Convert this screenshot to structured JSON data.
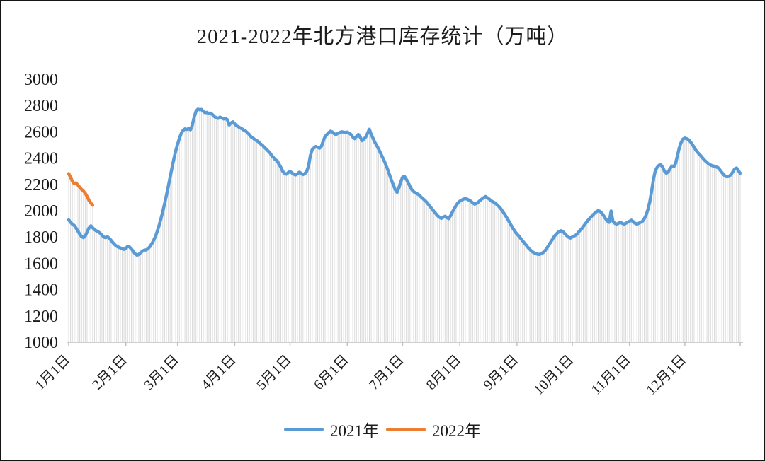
{
  "chart": {
    "title": "2021-2022年北方港口库存统计（万吨）",
    "legend": [
      {
        "label": "2021年",
        "color": "#5B9BD5"
      },
      {
        "label": "2022年",
        "color": "#ED7D31"
      }
    ]
  },
  "chart_data": {
    "type": "line",
    "title": "2021-2022年北方港口库存统计（万吨）",
    "unit": "万吨",
    "grid": false,
    "drop_lines": true,
    "legend_position": "bottom",
    "axis_color": "#BFBFBF",
    "dropline_color": "#DBDBDB",
    "text_color": "#1c1c1c",
    "ylim": [
      1000,
      3000
    ],
    "y_ticks": [
      1000,
      1200,
      1400,
      1600,
      1800,
      2000,
      2200,
      2400,
      2600,
      2800,
      3000
    ],
    "x_tick_labels": [
      "1月1日",
      "2月1日",
      "3月1日",
      "4月1日",
      "5月1日",
      "6月1日",
      "7月1日",
      "8月1日",
      "9月1日",
      "10月1日",
      "11月1日",
      "12月1日"
    ],
    "x_tick_days": [
      0,
      31,
      59,
      90,
      120,
      151,
      181,
      212,
      243,
      273,
      304,
      334
    ],
    "x_total_days": 365,
    "series": [
      {
        "name": "2021年",
        "color": "#5B9BD5",
        "start_day": 0,
        "values": [
          1930,
          1912,
          1898,
          1888,
          1868,
          1845,
          1822,
          1803,
          1795,
          1808,
          1838,
          1868,
          1885,
          1870,
          1856,
          1847,
          1840,
          1830,
          1815,
          1800,
          1795,
          1802,
          1790,
          1775,
          1757,
          1742,
          1730,
          1723,
          1717,
          1712,
          1706,
          1713,
          1730,
          1724,
          1710,
          1691,
          1673,
          1662,
          1668,
          1681,
          1693,
          1700,
          1702,
          1712,
          1727,
          1748,
          1773,
          1803,
          1843,
          1888,
          1938,
          1993,
          2053,
          2118,
          2185,
          2255,
          2325,
          2395,
          2455,
          2505,
          2550,
          2588,
          2610,
          2622,
          2618,
          2625,
          2615,
          2650,
          2710,
          2755,
          2772,
          2768,
          2770,
          2755,
          2745,
          2748,
          2738,
          2742,
          2730,
          2715,
          2708,
          2702,
          2712,
          2705,
          2698,
          2702,
          2692,
          2652,
          2668,
          2676,
          2660,
          2645,
          2638,
          2630,
          2622,
          2612,
          2605,
          2592,
          2578,
          2560,
          2552,
          2540,
          2532,
          2522,
          2508,
          2498,
          2482,
          2470,
          2455,
          2442,
          2420,
          2405,
          2388,
          2380,
          2355,
          2330,
          2300,
          2285,
          2278,
          2290,
          2300,
          2288,
          2278,
          2272,
          2280,
          2293,
          2285,
          2275,
          2282,
          2300,
          2338,
          2420,
          2465,
          2478,
          2488,
          2482,
          2475,
          2490,
          2530,
          2565,
          2580,
          2595,
          2605,
          2598,
          2585,
          2580,
          2588,
          2595,
          2600,
          2598,
          2595,
          2598,
          2590,
          2580,
          2560,
          2548,
          2565,
          2580,
          2560,
          2532,
          2545,
          2560,
          2588,
          2620,
          2580,
          2550,
          2520,
          2495,
          2470,
          2440,
          2410,
          2380,
          2345,
          2310,
          2270,
          2230,
          2195,
          2160,
          2140,
          2175,
          2220,
          2255,
          2262,
          2240,
          2215,
          2185,
          2160,
          2145,
          2135,
          2128,
          2120,
          2105,
          2092,
          2080,
          2065,
          2048,
          2030,
          2012,
          1995,
          1978,
          1962,
          1950,
          1942,
          1950,
          1958,
          1948,
          1940,
          1962,
          1990,
          2015,
          2040,
          2060,
          2072,
          2080,
          2088,
          2092,
          2088,
          2080,
          2072,
          2060,
          2050,
          2055,
          2065,
          2078,
          2090,
          2100,
          2108,
          2098,
          2088,
          2075,
          2068,
          2060,
          2048,
          2035,
          2020,
          2000,
          1980,
          1958,
          1935,
          1910,
          1885,
          1862,
          1840,
          1822,
          1808,
          1790,
          1772,
          1755,
          1738,
          1720,
          1705,
          1692,
          1682,
          1675,
          1670,
          1668,
          1672,
          1680,
          1692,
          1710,
          1732,
          1755,
          1778,
          1800,
          1818,
          1832,
          1843,
          1848,
          1840,
          1825,
          1810,
          1798,
          1792,
          1800,
          1808,
          1815,
          1830,
          1848,
          1862,
          1880,
          1900,
          1918,
          1935,
          1950,
          1965,
          1980,
          1992,
          2000,
          1995,
          1982,
          1962,
          1940,
          1922,
          1912,
          1998,
          1920,
          1905,
          1898,
          1905,
          1912,
          1905,
          1898,
          1905,
          1912,
          1920,
          1928,
          1918,
          1905,
          1898,
          1905,
          1912,
          1920,
          1940,
          1968,
          2010,
          2070,
          2150,
          2240,
          2305,
          2330,
          2345,
          2350,
          2330,
          2300,
          2285,
          2295,
          2320,
          2340,
          2335,
          2360,
          2420,
          2480,
          2520,
          2545,
          2552,
          2548,
          2540,
          2525,
          2505,
          2482,
          2460,
          2442,
          2428,
          2412,
          2395,
          2380,
          2368,
          2355,
          2348,
          2342,
          2338,
          2332,
          2328,
          2310,
          2292,
          2275,
          2262,
          2258,
          2262,
          2275,
          2295,
          2318,
          2325,
          2305,
          2285
        ]
      },
      {
        "name": "2022年",
        "color": "#ED7D31",
        "start_day": 0,
        "values": [
          2282,
          2255,
          2225,
          2205,
          2212,
          2195,
          2178,
          2162,
          2150,
          2132,
          2108,
          2080,
          2058,
          2042
        ]
      }
    ]
  }
}
